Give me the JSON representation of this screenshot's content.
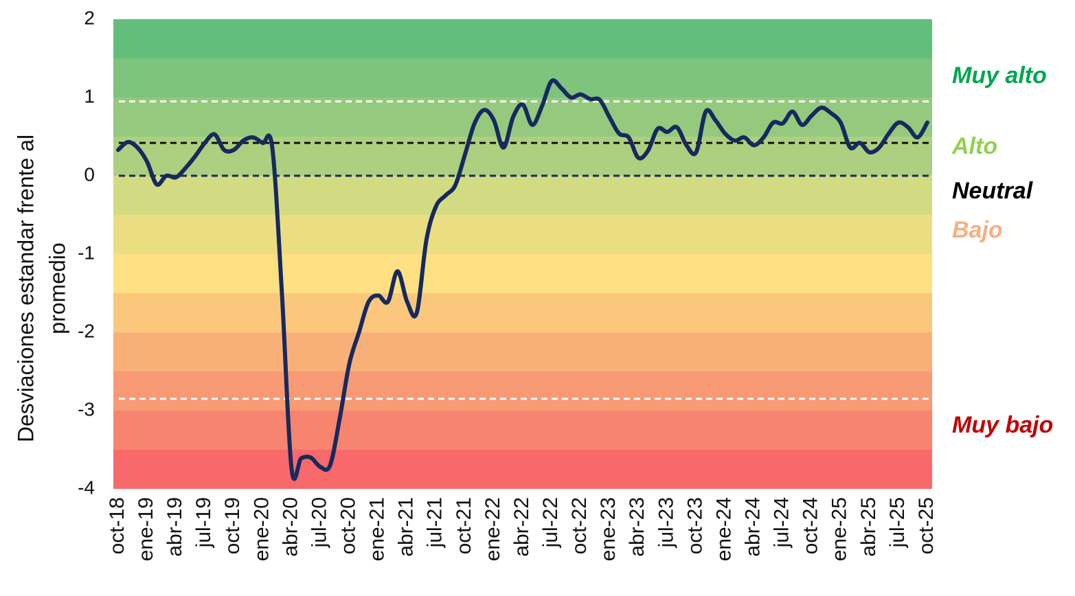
{
  "chart_data": {
    "type": "line",
    "ylabel": [
      "Desviaciones estandar frente al",
      "promedio"
    ],
    "categories": [
      "oct-18",
      null,
      null,
      "ene-19",
      null,
      null,
      "abr-19",
      null,
      null,
      "jul-19",
      null,
      null,
      "oct-19",
      null,
      null,
      "ene-20",
      null,
      null,
      "abr-20",
      null,
      null,
      "jul-20",
      null,
      null,
      "oct-20",
      null,
      null,
      "ene-21",
      null,
      null,
      "abr-21",
      null,
      null,
      "jul-21",
      null,
      null,
      "oct-21",
      null,
      null,
      "ene-22",
      null,
      null,
      "abr-22",
      null,
      null,
      "jul-22",
      null,
      null,
      "oct-22",
      null,
      null,
      "ene-23",
      null,
      null,
      "abr-23",
      null,
      null,
      "jul-23",
      null,
      null,
      "oct-23",
      null,
      null,
      "ene-24",
      null,
      null,
      "abr-24",
      null,
      null,
      "jul-24",
      null,
      null,
      "oct-24",
      null,
      null,
      "ene-25",
      null,
      null,
      "abr-25",
      null,
      null,
      "jul-25",
      null,
      null,
      "oct-25"
    ],
    "values": [
      0.33,
      0.43,
      0.36,
      0.18,
      -0.11,
      0.0,
      -0.02,
      0.1,
      0.25,
      0.42,
      0.53,
      0.33,
      0.33,
      0.45,
      0.49,
      0.42,
      0.36,
      -1.5,
      -3.74,
      -3.61,
      -3.6,
      -3.72,
      -3.7,
      -3.1,
      -2.4,
      -2.0,
      -1.61,
      -1.53,
      -1.61,
      -1.22,
      -1.61,
      -1.75,
      -0.82,
      -0.39,
      -0.25,
      -0.12,
      0.27,
      0.67,
      0.84,
      0.71,
      0.36,
      0.75,
      0.91,
      0.65,
      0.89,
      1.21,
      1.12,
      1.0,
      1.04,
      0.98,
      0.97,
      0.75,
      0.54,
      0.49,
      0.23,
      0.32,
      0.6,
      0.56,
      0.62,
      0.39,
      0.3,
      0.82,
      0.71,
      0.54,
      0.45,
      0.49,
      0.39,
      0.49,
      0.68,
      0.67,
      0.82,
      0.65,
      0.77,
      0.87,
      0.8,
      0.68,
      0.36,
      0.42,
      0.3,
      0.36,
      0.54,
      0.68,
      0.62,
      0.49,
      0.68
    ],
    "color": "#162a5e",
    "ylim": [
      -4,
      2
    ],
    "yticks": [
      -4,
      -3,
      -2,
      -1,
      0,
      1,
      2
    ],
    "bands": [
      {
        "from": 2,
        "to": 1.5,
        "color": "#63be7b"
      },
      {
        "from": 1.5,
        "to": 1,
        "color": "#7dc47d"
      },
      {
        "from": 1,
        "to": 0.5,
        "color": "#94c97e"
      },
      {
        "from": 0.5,
        "to": 0,
        "color": "#accf80"
      },
      {
        "from": 0,
        "to": -0.5,
        "color": "#d3db82"
      },
      {
        "from": -0.5,
        "to": -1,
        "color": "#ebdd82"
      },
      {
        "from": -1,
        "to": -1.5,
        "color": "#fde082"
      },
      {
        "from": -1.5,
        "to": -2,
        "color": "#fbc77d"
      },
      {
        "from": -2,
        "to": -2.5,
        "color": "#f9b078"
      },
      {
        "from": -2.5,
        "to": -3,
        "color": "#f89a73"
      },
      {
        "from": -3,
        "to": -3.5,
        "color": "#f7846f"
      },
      {
        "from": -3.5,
        "to": -4,
        "color": "#f8696b"
      }
    ],
    "ref_lines": [
      {
        "value": 0.95,
        "color": "#ffffff"
      },
      {
        "value": 0.42,
        "color": "#111111"
      },
      {
        "value": 0,
        "color": "#162a5e"
      },
      {
        "value": -2.85,
        "color": "#ffffff"
      }
    ],
    "annotations": [
      {
        "text": "Muy alto",
        "color": "#00a651"
      },
      {
        "text": "Alto",
        "color": "#92d050"
      },
      {
        "text": "Neutral",
        "color": "#000000"
      },
      {
        "text": "Bajo",
        "color": "#f4b183"
      },
      {
        "text": "Muy bajo",
        "color": "#c00000"
      }
    ]
  }
}
